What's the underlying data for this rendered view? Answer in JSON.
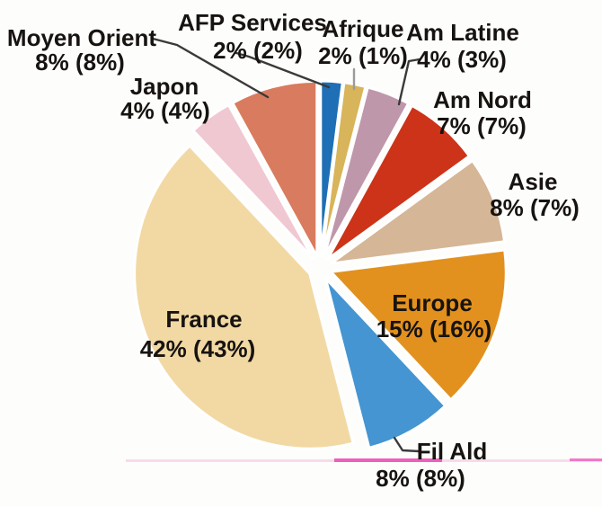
{
  "figure": {
    "background_color": "#fdfdfb",
    "text_color": "#171310"
  },
  "chart_data": {
    "type": "pie",
    "title": "",
    "unit": "%",
    "label_format": "name + current% (previous%)",
    "direction": "clockwise",
    "start_angle_deg": 0,
    "exploded": true,
    "legend_position": "none",
    "slices": [
      {
        "id": "afp-services",
        "name": "AFP Services",
        "value": 2,
        "prev_value": 2,
        "value_text": "2% (2%)",
        "color": "#1e6fb5"
      },
      {
        "id": "afrique",
        "name": "Afrique",
        "value": 2,
        "prev_value": 1,
        "value_text": "2% (1%)",
        "color": "#d8b45a"
      },
      {
        "id": "am-latine",
        "name": "Am Latine",
        "value": 4,
        "prev_value": 3,
        "value_text": "4% (3%)",
        "color": "#bf97aa"
      },
      {
        "id": "am-nord",
        "name": "Am Nord",
        "value": 7,
        "prev_value": 7,
        "value_text": "7% (7%)",
        "color": "#cc3318"
      },
      {
        "id": "asie",
        "name": "Asie",
        "value": 8,
        "prev_value": 7,
        "value_text": "8% (7%)",
        "color": "#d5b696"
      },
      {
        "id": "europe",
        "name": "Europe",
        "value": 15,
        "prev_value": 16,
        "value_text": "15% (16%)",
        "color": "#e2911f"
      },
      {
        "id": "fil-ald",
        "name": "Fil Ald",
        "value": 8,
        "prev_value": 8,
        "value_text": "8% (8%)",
        "color": "#4495d1"
      },
      {
        "id": "france",
        "name": "France",
        "value": 42,
        "prev_value": 43,
        "value_text": "42% (43%)",
        "color": "#f2d9a4"
      },
      {
        "id": "japon",
        "name": "Japon",
        "value": 4,
        "prev_value": 4,
        "value_text": "4% (4%)",
        "color": "#f0c8d2"
      },
      {
        "id": "moyen-orient",
        "name": "Moyen Orient",
        "value": 8,
        "prev_value": 8,
        "value_text": "8% (8%)",
        "color": "#d97b5e"
      }
    ],
    "leader_line_color": "#3a3a3a",
    "afrique_leader_line_color": "#9b9b9b",
    "slice_border_color": "#ffffff"
  },
  "artifacts": {
    "scan_line_strong_color": "#ee5fbd",
    "scan_line_soft_color": "#f4bede"
  }
}
